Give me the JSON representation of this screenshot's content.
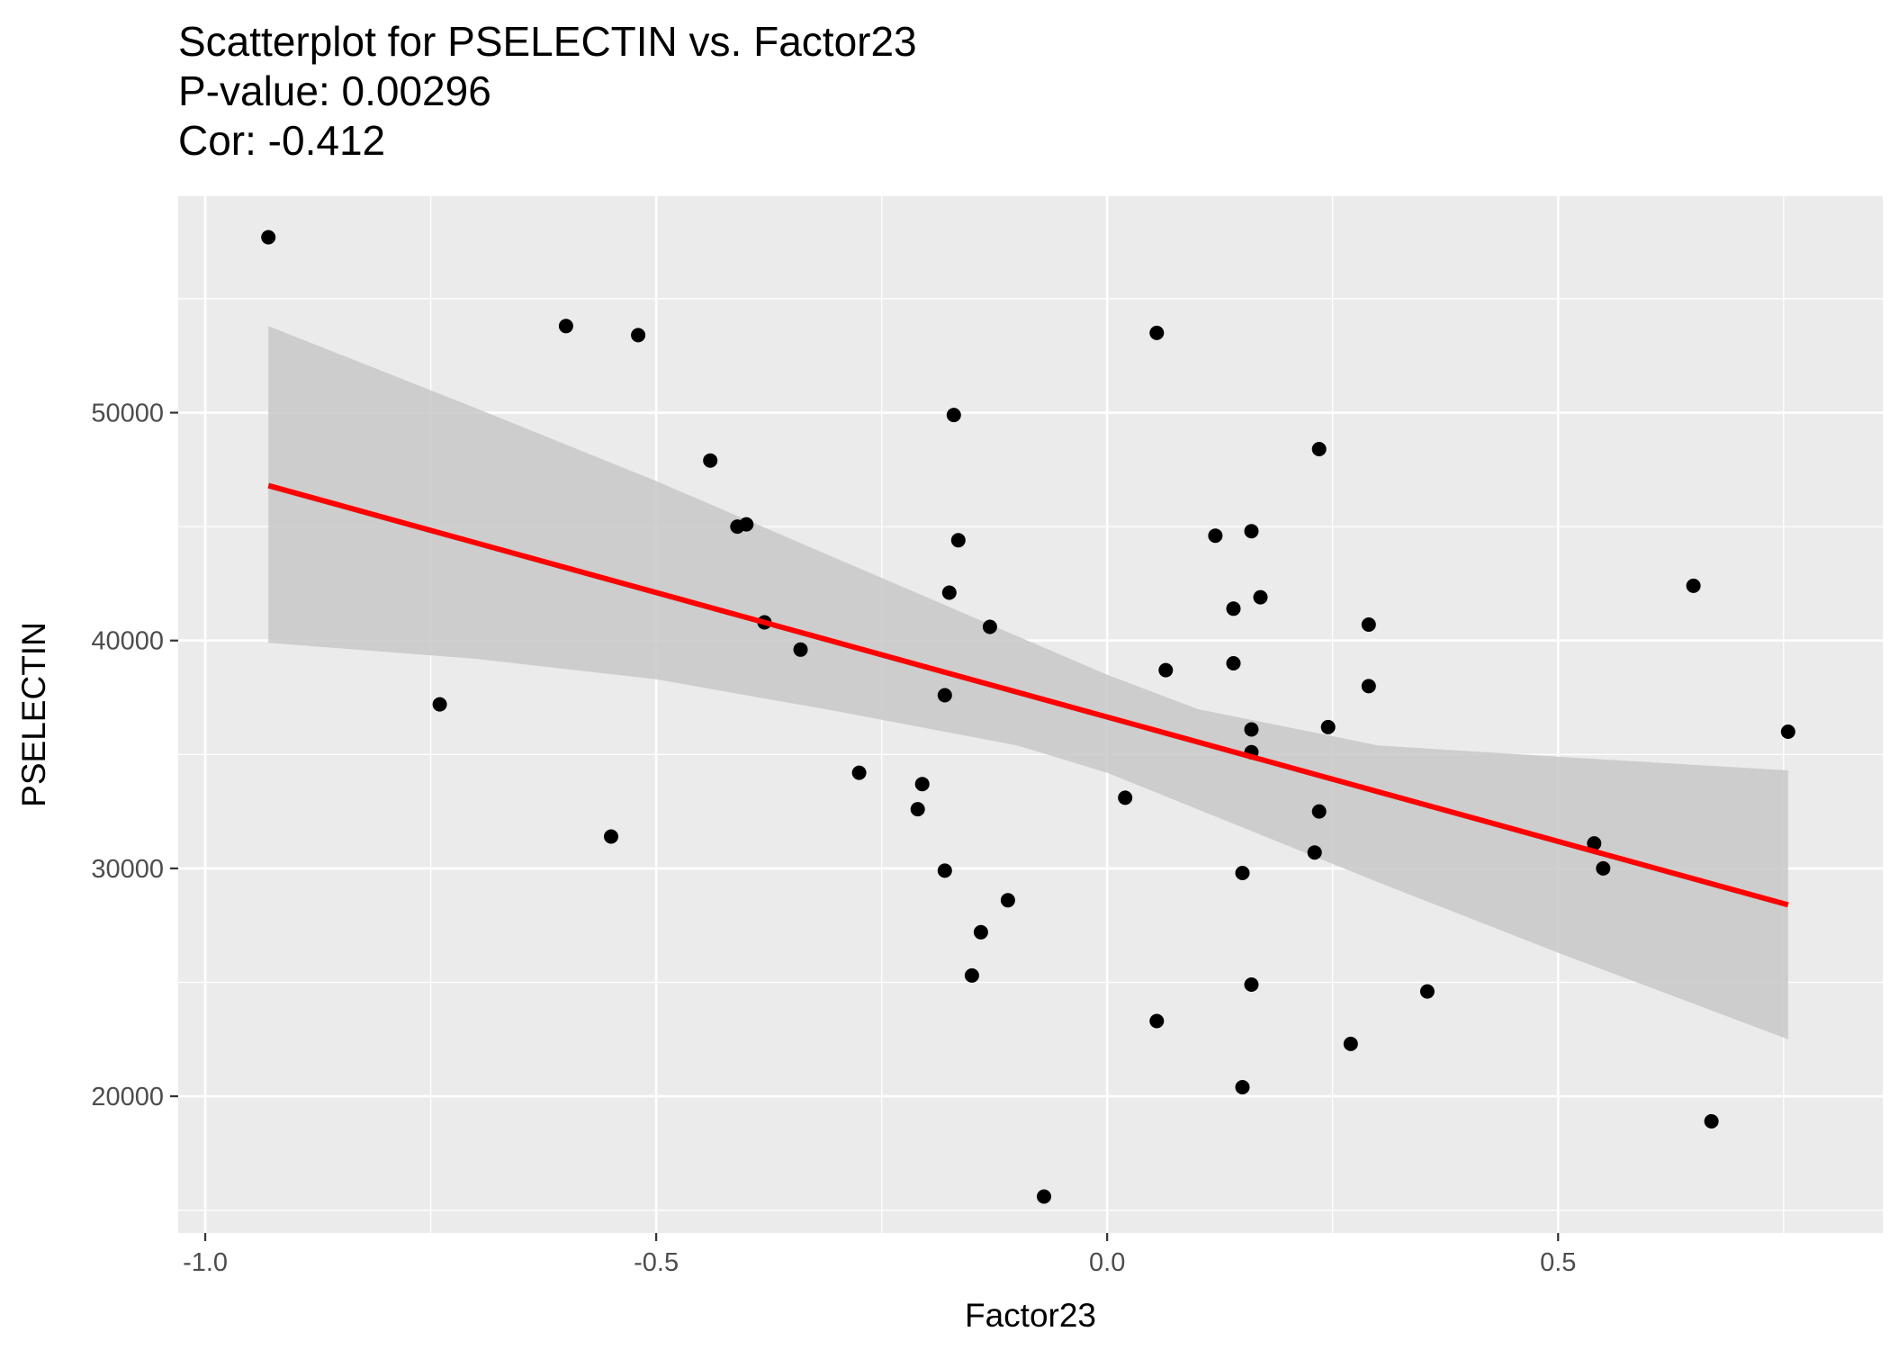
{
  "chart_data": {
    "type": "scatter",
    "title": [
      "Scatterplot for PSELECTIN vs. Factor23",
      "P-value: 0.00296",
      "Cor: -0.412"
    ],
    "xlabel": "Factor23",
    "ylabel": "PSELECTIN",
    "xlim": [
      -1.03,
      0.86
    ],
    "ylim": [
      14000,
      59500
    ],
    "x_ticks": [
      -1.0,
      -0.5,
      0.0,
      0.5
    ],
    "x_tick_labels": [
      "-1.0",
      "-0.5",
      "0.0",
      "0.5"
    ],
    "y_ticks": [
      20000,
      30000,
      40000,
      50000
    ],
    "y_tick_labels": [
      "20000",
      "30000",
      "40000",
      "50000"
    ],
    "grid": true,
    "legend": "none",
    "points": [
      {
        "x": -0.93,
        "y": 57700
      },
      {
        "x": -0.6,
        "y": 53800
      },
      {
        "x": -0.52,
        "y": 53400
      },
      {
        "x": -0.74,
        "y": 37200
      },
      {
        "x": -0.55,
        "y": 31400
      },
      {
        "x": -0.44,
        "y": 47900
      },
      {
        "x": -0.41,
        "y": 45000
      },
      {
        "x": -0.4,
        "y": 45100
      },
      {
        "x": -0.38,
        "y": 40800
      },
      {
        "x": -0.34,
        "y": 39600
      },
      {
        "x": -0.275,
        "y": 34200
      },
      {
        "x": -0.205,
        "y": 33700
      },
      {
        "x": -0.21,
        "y": 32600
      },
      {
        "x": -0.18,
        "y": 37600
      },
      {
        "x": -0.175,
        "y": 42100
      },
      {
        "x": -0.17,
        "y": 49900
      },
      {
        "x": -0.165,
        "y": 44400
      },
      {
        "x": -0.13,
        "y": 40600
      },
      {
        "x": -0.18,
        "y": 29900
      },
      {
        "x": -0.11,
        "y": 28600
      },
      {
        "x": -0.14,
        "y": 27200
      },
      {
        "x": -0.15,
        "y": 25300
      },
      {
        "x": -0.07,
        "y": 15600
      },
      {
        "x": 0.02,
        "y": 33100
      },
      {
        "x": 0.055,
        "y": 53500
      },
      {
        "x": 0.065,
        "y": 38700
      },
      {
        "x": 0.055,
        "y": 23300
      },
      {
        "x": 0.12,
        "y": 44600
      },
      {
        "x": 0.14,
        "y": 41400
      },
      {
        "x": 0.14,
        "y": 39000
      },
      {
        "x": 0.16,
        "y": 44800
      },
      {
        "x": 0.17,
        "y": 41900
      },
      {
        "x": 0.16,
        "y": 36100
      },
      {
        "x": 0.16,
        "y": 35100
      },
      {
        "x": 0.15,
        "y": 29800
      },
      {
        "x": 0.16,
        "y": 24900
      },
      {
        "x": 0.15,
        "y": 20400
      },
      {
        "x": 0.235,
        "y": 48400
      },
      {
        "x": 0.245,
        "y": 36200
      },
      {
        "x": 0.235,
        "y": 32500
      },
      {
        "x": 0.23,
        "y": 30700
      },
      {
        "x": 0.29,
        "y": 40700
      },
      {
        "x": 0.29,
        "y": 38000
      },
      {
        "x": 0.27,
        "y": 22300
      },
      {
        "x": 0.355,
        "y": 24600
      },
      {
        "x": 0.54,
        "y": 31100
      },
      {
        "x": 0.55,
        "y": 30000
      },
      {
        "x": 0.65,
        "y": 42400
      },
      {
        "x": 0.67,
        "y": 18900
      },
      {
        "x": 0.755,
        "y": 36000
      }
    ],
    "fit_line": {
      "x": [
        -0.93,
        0.755
      ],
      "y": [
        46800,
        28400
      ],
      "color": "#ff0000"
    },
    "confidence_band": {
      "x": [
        -0.93,
        -0.7,
        -0.5,
        -0.3,
        -0.1,
        0.0,
        0.1,
        0.3,
        0.5,
        0.755
      ],
      "upper": [
        53800,
        50200,
        47000,
        43600,
        40200,
        38500,
        37000,
        35400,
        34900,
        34300
      ],
      "lower": [
        39900,
        39200,
        38300,
        36900,
        35400,
        34200,
        32600,
        29400,
        26300,
        22500
      ],
      "color": "#c8c8c8"
    },
    "colors": {
      "panel_bg": "#ebebeb",
      "grid": "#ffffff",
      "points": "#000000",
      "fit": "#ff0000",
      "band": "#c8c8c8"
    }
  }
}
